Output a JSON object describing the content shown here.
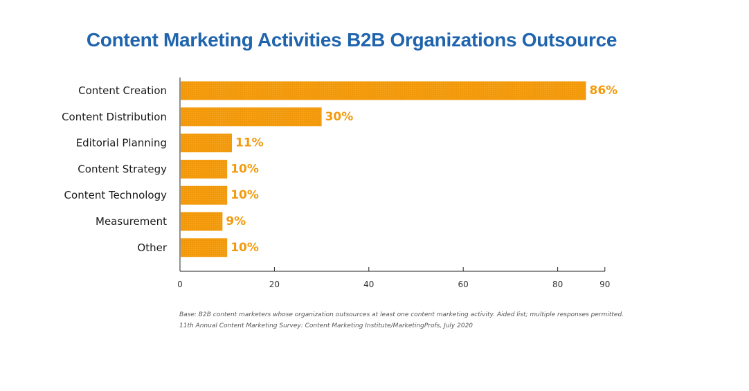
{
  "chart_data": {
    "type": "bar",
    "orientation": "horizontal",
    "title": "Content Marketing Activities B2B Organizations Outsource",
    "categories": [
      "Content Creation",
      "Content Distribution",
      "Editorial Planning",
      "Content Strategy",
      "Content Technology",
      "Measurement",
      "Other"
    ],
    "values": [
      86,
      30,
      11,
      10,
      10,
      9,
      10
    ],
    "value_labels": [
      "86%",
      "30%",
      "11%",
      "10%",
      "10%",
      "9%",
      "10%"
    ],
    "xlabel": "",
    "ylabel": "",
    "xlim": [
      0,
      90
    ],
    "x_ticks": [
      0,
      20,
      40,
      60,
      80,
      90
    ],
    "grid": false,
    "bar_color": "#f39a0c",
    "label_color": "#f39a0c"
  },
  "title_color": "#1f64ad",
  "footnotes": {
    "base": "Base: B2B content marketers whose organization outsources at least one content marketing activity. Aided list; multiple responses permitted.",
    "source": "11th Annual Content Marketing Survey: Content Marketing Institute/MarketingProfs, July 2020"
  }
}
